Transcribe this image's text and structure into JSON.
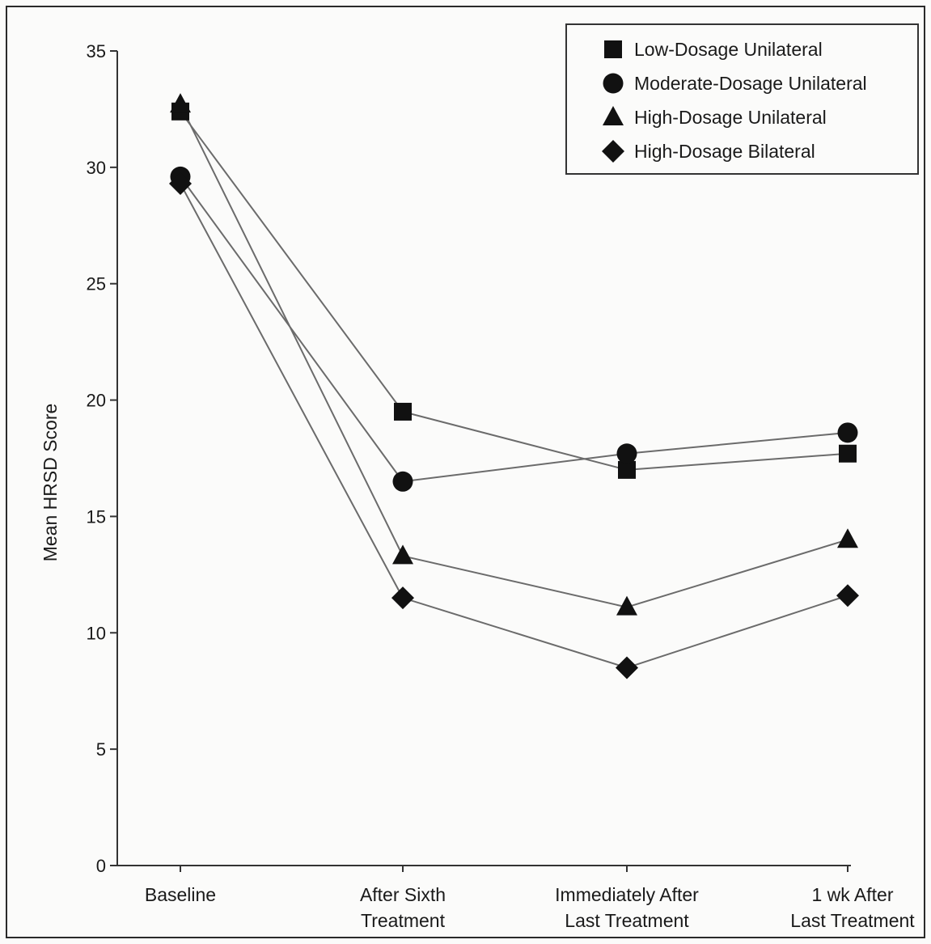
{
  "chart_data": {
    "type": "line",
    "title": "",
    "xlabel": "",
    "ylabel": "Mean HRSD Score",
    "ylim": [
      0,
      35
    ],
    "yticks": [
      0,
      5,
      10,
      15,
      20,
      25,
      30,
      35
    ],
    "categories": [
      [
        "Baseline"
      ],
      [
        "After Sixth",
        "Treatment"
      ],
      [
        "Immediately After",
        "Last Treatment"
      ],
      [
        "1 wk After",
        "Last Treatment"
      ]
    ],
    "legend_position": "top-right",
    "grid": false,
    "line_color": "#6b6b6b",
    "marker_color": "#111111",
    "series": [
      {
        "name": "Low-Dosage Unilateral",
        "marker": "square",
        "values": [
          32.4,
          19.5,
          17.0,
          17.7
        ]
      },
      {
        "name": "Moderate-Dosage Unilateral",
        "marker": "circle",
        "values": [
          29.6,
          16.5,
          17.7,
          18.6
        ]
      },
      {
        "name": "High-Dosage Unilateral",
        "marker": "triangle",
        "values": [
          32.7,
          13.3,
          11.1,
          14.0
        ]
      },
      {
        "name": "High-Dosage Bilateral",
        "marker": "diamond",
        "values": [
          29.3,
          11.5,
          8.5,
          11.6
        ]
      }
    ]
  }
}
